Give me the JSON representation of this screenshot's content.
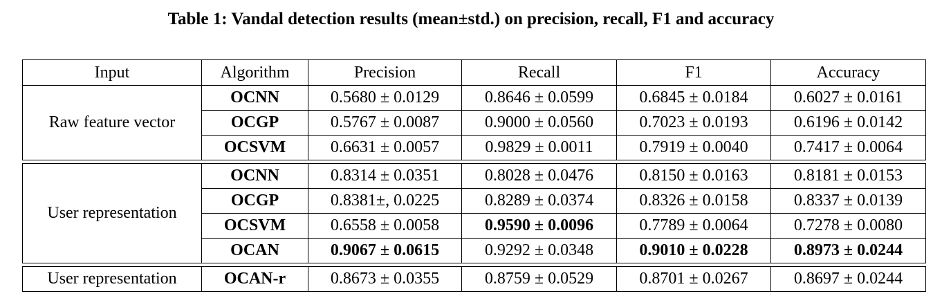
{
  "caption": "Table 1: Vandal detection results (mean±std.) on precision, recall, F1 and accuracy",
  "headers": [
    "Input",
    "Algorithm",
    "Precision",
    "Recall",
    "F1",
    "Accuracy"
  ],
  "groups": [
    {
      "input": "Raw feature vector",
      "rows": [
        {
          "algorithm": "OCNN",
          "precision": "0.5680 ± 0.0129",
          "recall": "0.8646 ± 0.0599",
          "f1": "0.6845 ± 0.0184",
          "accuracy": "0.6027 ± 0.0161"
        },
        {
          "algorithm": "OCGP",
          "precision": "0.5767 ± 0.0087",
          "recall": "0.9000 ± 0.0560",
          "f1": "0.7023 ± 0.0193",
          "accuracy": "0.6196 ± 0.0142"
        },
        {
          "algorithm": "OCSVM",
          "precision": "0.6631 ± 0.0057",
          "recall": "0.9829 ± 0.0011",
          "f1": "0.7919 ± 0.0040",
          "accuracy": "0.7417 ± 0.0064"
        }
      ]
    },
    {
      "input": "User representation",
      "rows": [
        {
          "algorithm": "OCNN",
          "precision": "0.8314 ± 0.0351",
          "recall": "0.8028 ± 0.0476",
          "f1": "0.8150 ± 0.0163",
          "accuracy": "0.8181 ± 0.0153"
        },
        {
          "algorithm": "OCGP",
          "precision": "0.8381±, 0.0225",
          "recall": "0.8289 ± 0.0374",
          "f1": "0.8326 ± 0.0158",
          "accuracy": "0.8337 ± 0.0139"
        },
        {
          "algorithm": "OCSVM",
          "precision": "0.6558 ± 0.0058",
          "recall": "0.9590 ± 0.0096",
          "f1": "0.7789 ± 0.0064",
          "accuracy": "0.7278 ± 0.0080"
        },
        {
          "algorithm": "OCAN",
          "precision": "0.9067 ± 0.0615",
          "recall": "0.9292 ± 0.0348",
          "f1": "0.9010 ± 0.0228",
          "accuracy": "0.8973 ± 0.0244"
        }
      ]
    },
    {
      "input": "User representation",
      "rows": [
        {
          "algorithm": "OCAN-r",
          "precision": "0.8673 ± 0.0355",
          "recall": "0.8759 ± 0.0529",
          "f1": "0.8701 ± 0.0267",
          "accuracy": "0.8697 ± 0.0244"
        }
      ]
    }
  ]
}
